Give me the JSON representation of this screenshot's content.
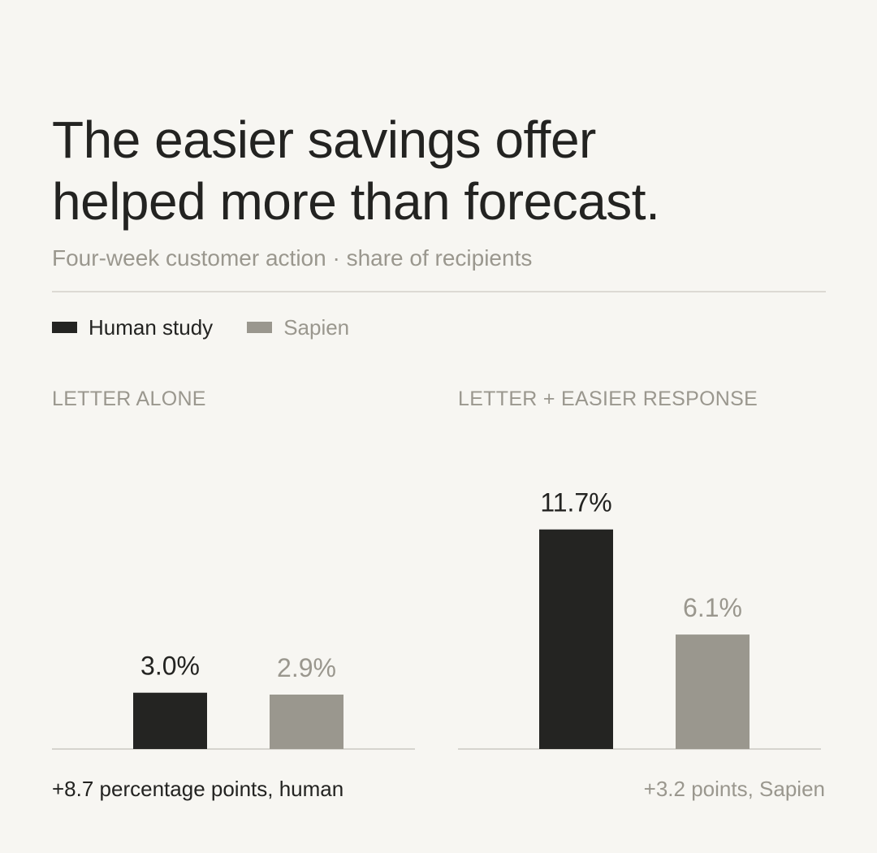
{
  "title_line1": "The easier savings offer",
  "title_line2": "helped more than forecast.",
  "subtitle": "Four-week customer action · share of recipients",
  "legend": [
    {
      "label": "Human study",
      "color": "#242422"
    },
    {
      "label": "Sapien",
      "color": "#9a978e"
    }
  ],
  "notes": {
    "left": "+8.7 percentage points, human",
    "right": "+3.2 points, Sapien"
  },
  "chart_data": [
    {
      "type": "bar",
      "title": "LETTER ALONE",
      "series": [
        {
          "name": "Human study",
          "value": 3.0,
          "label": "3.0%",
          "color": "#242422",
          "label_color": "#232321"
        },
        {
          "name": "Sapien",
          "value": 2.9,
          "label": "2.9%",
          "color": "#9a978e",
          "label_color": "#9a978e"
        }
      ],
      "unit": "%"
    },
    {
      "type": "bar",
      "title": "LETTER + EASIER RESPONSE",
      "series": [
        {
          "name": "Human study",
          "value": 11.7,
          "label": "11.7%",
          "color": "#242422",
          "label_color": "#232321"
        },
        {
          "name": "Sapien",
          "value": 6.1,
          "label": "6.1%",
          "color": "#9a978e",
          "label_color": "#9a978e"
        }
      ],
      "unit": "%"
    }
  ]
}
